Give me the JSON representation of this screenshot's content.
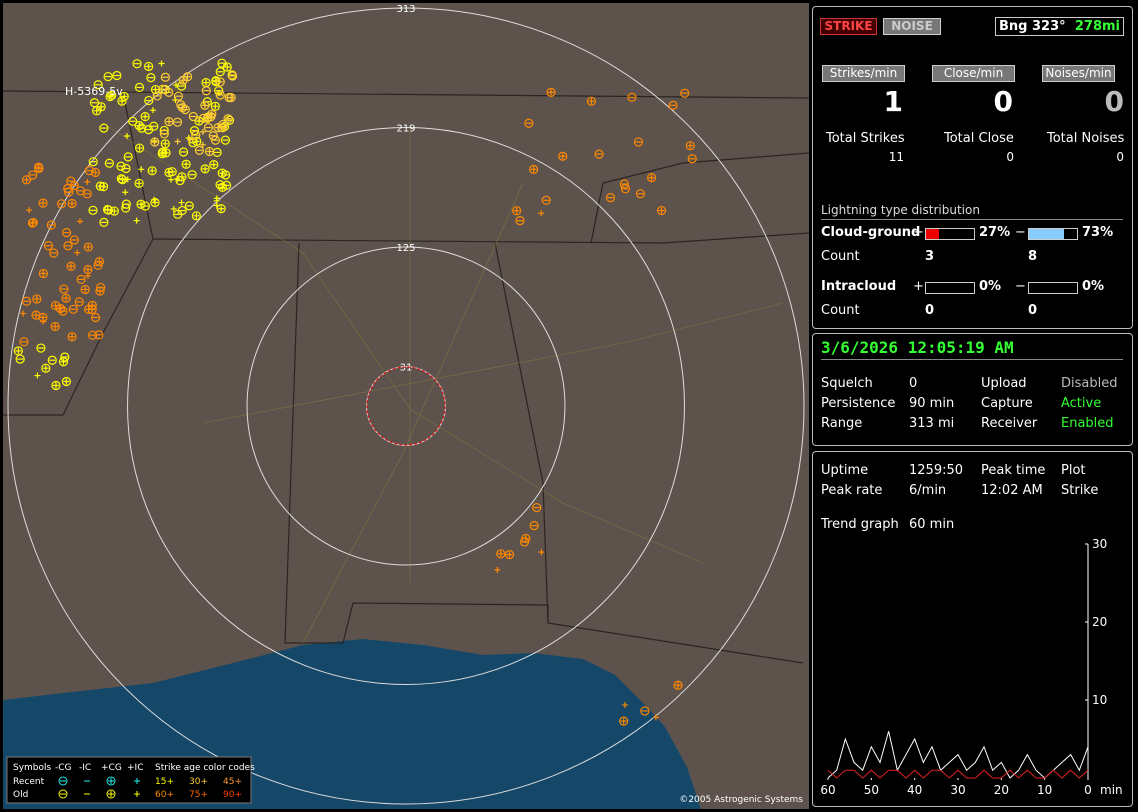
{
  "map": {
    "ring_ranges": [
      313,
      219,
      125,
      31
    ],
    "station_label": "H-5369-5v",
    "copyright": "©2005 Astrogenic Systems",
    "legend": {
      "symbols_title": "Symbols",
      "headers": [
        "-CG",
        "-IC",
        "+CG",
        "+IC"
      ],
      "rows": [
        "Recent",
        "Old"
      ],
      "age_title": "Strike age color codes",
      "ages": [
        "15+",
        "30+",
        "45+",
        "60+",
        "75+",
        "90+"
      ]
    }
  },
  "status": {
    "strike_button": "STRIKE",
    "noise_button": "NOISE",
    "bearing": "Bng 323°",
    "distance": "278mi"
  },
  "rates": [
    {
      "label": "Strikes/min",
      "value": 1
    },
    {
      "label": "Close/min",
      "value": 0
    },
    {
      "label": "Noises/min",
      "value": 0
    }
  ],
  "totals": [
    {
      "label": "Total Strikes",
      "value": 11
    },
    {
      "label": "Total Close",
      "value": 0
    },
    {
      "label": "Total Noises",
      "value": 0
    }
  ],
  "distribution": {
    "title": "Lightning type distribution",
    "plus_sign": "+",
    "minus_sign": "−",
    "count_label": "Count",
    "rows": [
      {
        "label": "Cloud-ground",
        "plus": {
          "value": 27,
          "label": "27%"
        },
        "minus": {
          "value": 73,
          "label": "73%"
        },
        "plus_count": 3,
        "minus_count": 8
      },
      {
        "label": "Intracloud",
        "plus": {
          "value": 0,
          "label": "0%"
        },
        "minus": {
          "value": 0,
          "label": "0%"
        },
        "plus_count": 0,
        "minus_count": 0
      }
    ]
  },
  "datetime": "3/6/2026 12:05:19 AM",
  "settings": [
    [
      "Squelch",
      "0",
      "Upload",
      "Disabled"
    ],
    [
      "Persistence",
      "90 min",
      "Capture",
      "Active"
    ],
    [
      "Range",
      "313 mi",
      "Receiver",
      "Enabled"
    ]
  ],
  "stats": [
    [
      "Uptime",
      "1259:50",
      "Peak time",
      "Plot"
    ],
    [
      "Peak rate",
      "6/min",
      "12:02 AM",
      "Strike"
    ]
  ],
  "trend": {
    "label": "Trend graph",
    "window": "60 min",
    "chart": {
      "type": "line",
      "xlabel": "min",
      "xlim": [
        60,
        0
      ],
      "ylim": [
        0,
        30
      ],
      "xticks": [
        60,
        50,
        40,
        30,
        20,
        10,
        0
      ],
      "yticks": [
        10,
        20,
        30
      ],
      "x": [
        60,
        58,
        56,
        54,
        52,
        50,
        48,
        46,
        44,
        42,
        40,
        38,
        36,
        34,
        32,
        30,
        28,
        26,
        24,
        22,
        20,
        18,
        16,
        14,
        12,
        10,
        8,
        6,
        4,
        2,
        0
      ],
      "series": [
        {
          "color": "#ffffff",
          "values": [
            0,
            1,
            5,
            2,
            1,
            4,
            2,
            6,
            1,
            3,
            5,
            2,
            4,
            1,
            2,
            3,
            1,
            2,
            4,
            1,
            2,
            0,
            1,
            3,
            1,
            0,
            1,
            2,
            3,
            1,
            4
          ]
        },
        {
          "color": "#e02020",
          "values": [
            1,
            0,
            1,
            1,
            0,
            1,
            0,
            1,
            1,
            0,
            1,
            0,
            1,
            1,
            0,
            1,
            0,
            0,
            1,
            0,
            0,
            1,
            0,
            1,
            0,
            0,
            1,
            0,
            1,
            0,
            1
          ]
        }
      ]
    }
  }
}
